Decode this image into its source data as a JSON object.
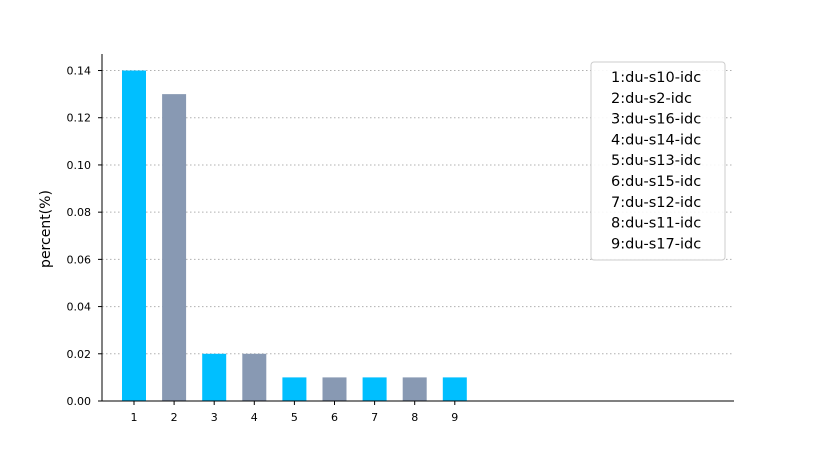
{
  "chart_data": {
    "type": "bar",
    "categories": [
      "1",
      "2",
      "3",
      "4",
      "5",
      "6",
      "7",
      "8",
      "9"
    ],
    "values": [
      0.14,
      0.13,
      0.02,
      0.02,
      0.01,
      0.01,
      0.01,
      0.01,
      0.01
    ],
    "bar_colors": [
      "#00bfff",
      "#8899b3",
      "#00bfff",
      "#8899b3",
      "#00bfff",
      "#8899b3",
      "#00bfff",
      "#8899b3",
      "#00bfff"
    ],
    "title": "",
    "xlabel": "",
    "ylabel": "percent(%)",
    "ylim": [
      0,
      0.147
    ],
    "yticks": [
      "0.00",
      "0.02",
      "0.04",
      "0.06",
      "0.08",
      "0.10",
      "0.12",
      "0.14"
    ],
    "ytick_values": [
      0,
      0.02,
      0.04,
      0.06,
      0.08,
      0.1,
      0.12,
      0.14
    ],
    "grid": "horizontal-dotted",
    "legend_position": "top-right",
    "legend": [
      "1:du-s10-idc",
      "2:du-s2-idc",
      "3:du-s16-idc",
      "4:du-s14-idc",
      "5:du-s13-idc",
      "6:du-s15-idc",
      "7:du-s12-idc",
      "8:du-s11-idc",
      "9:du-s17-idc"
    ]
  }
}
